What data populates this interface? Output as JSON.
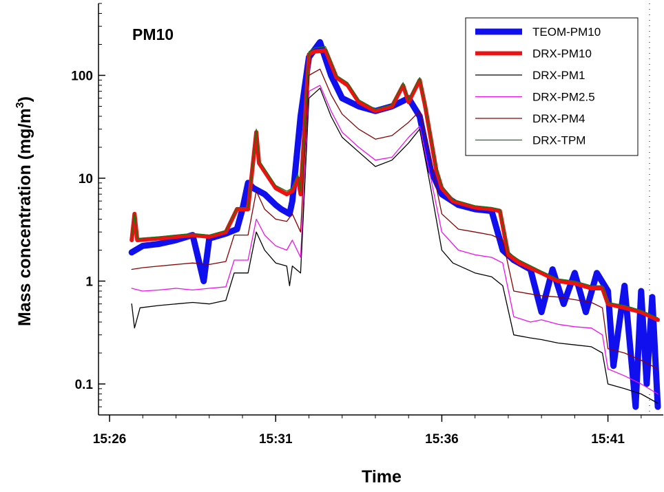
{
  "chart_data": {
    "type": "line",
    "title": "PM10",
    "xlabel": "Time",
    "ylabel": "Mass concentration (mg/m",
    "ylabel_sup": "3",
    "ylabel_close": ")",
    "yscale": "log",
    "ylim": [
      0.05,
      500
    ],
    "xlim": [
      "15:25:40",
      "15:42:40"
    ],
    "x_ticks": [
      "15:26",
      "15:31",
      "15:36",
      "15:41"
    ],
    "y_ticks": [
      {
        "value": 0.1,
        "label": "0.1"
      },
      {
        "value": 1,
        "label": "1"
      },
      {
        "value": 10,
        "label": "10"
      },
      {
        "value": 100,
        "label": "100"
      }
    ],
    "legend_position": "top-right",
    "series": [
      {
        "name": "TEOM-PM10",
        "color": "#1010ee",
        "points": [
          [
            "15:26:40",
            1.9
          ],
          [
            "15:27:00",
            2.2
          ],
          [
            "15:27:30",
            2.3
          ],
          [
            "15:28:00",
            2.5
          ],
          [
            "15:28:30",
            2.8
          ],
          [
            "15:28:50",
            1.0
          ],
          [
            "15:29:00",
            2.6
          ],
          [
            "15:29:30",
            2.9
          ],
          [
            "15:29:50",
            3.2
          ],
          [
            "15:30:00",
            5.0
          ],
          [
            "15:30:10",
            9
          ],
          [
            "15:30:20",
            8
          ],
          [
            "15:30:40",
            7
          ],
          [
            "15:31:00",
            5.5
          ],
          [
            "15:31:10",
            5.0
          ],
          [
            "15:31:25",
            4.5
          ],
          [
            "15:31:30",
            6
          ],
          [
            "15:31:45",
            40
          ],
          [
            "15:32:00",
            150
          ],
          [
            "15:32:20",
            210
          ],
          [
            "15:32:40",
            100
          ],
          [
            "15:33:00",
            60
          ],
          [
            "15:33:30",
            50
          ],
          [
            "15:34:00",
            45
          ],
          [
            "15:34:30",
            50
          ],
          [
            "15:35:00",
            60
          ],
          [
            "15:35:20",
            40
          ],
          [
            "15:35:40",
            12
          ],
          [
            "15:36:00",
            7
          ],
          [
            "15:36:30",
            5.5
          ],
          [
            "15:37:00",
            5.0
          ],
          [
            "15:37:30",
            4.8
          ],
          [
            "15:37:50",
            2.0
          ],
          [
            "15:38:10",
            1.6
          ],
          [
            "15:38:40",
            1.3
          ],
          [
            "15:39:00",
            0.5
          ],
          [
            "15:39:20",
            1.3
          ],
          [
            "15:39:40",
            0.6
          ],
          [
            "15:40:00",
            1.2
          ],
          [
            "15:40:20",
            0.5
          ],
          [
            "15:40:40",
            1.2
          ],
          [
            "15:41:00",
            0.8
          ],
          [
            "15:41:10",
            0.15
          ],
          [
            "15:41:30",
            0.9
          ],
          [
            "15:41:50",
            0.06
          ],
          [
            "15:42:00",
            0.8
          ],
          [
            "15:42:10",
            0.1
          ],
          [
            "15:42:20",
            0.7
          ],
          [
            "15:42:30",
            0.06
          ]
        ]
      },
      {
        "name": "DRX-PM10",
        "color": "#ee1111",
        "points": [
          [
            "15:26:40",
            2.5
          ],
          [
            "15:26:45",
            4.5
          ],
          [
            "15:26:50",
            2.5
          ],
          [
            "15:27:30",
            2.6
          ],
          [
            "15:28:00",
            2.7
          ],
          [
            "15:28:30",
            2.8
          ],
          [
            "15:29:00",
            2.7
          ],
          [
            "15:29:30",
            3.0
          ],
          [
            "15:29:50",
            5.0
          ],
          [
            "15:30:10",
            5.0
          ],
          [
            "15:30:25",
            28
          ],
          [
            "15:30:30",
            14
          ],
          [
            "15:31:00",
            8
          ],
          [
            "15:31:20",
            7
          ],
          [
            "15:31:30",
            7.5
          ],
          [
            "15:31:40",
            10
          ],
          [
            "15:31:45",
            7
          ],
          [
            "15:32:00",
            160
          ],
          [
            "15:32:10",
            170
          ],
          [
            "15:32:30",
            175
          ],
          [
            "15:32:50",
            95
          ],
          [
            "15:33:10",
            80
          ],
          [
            "15:33:30",
            55
          ],
          [
            "15:34:00",
            45
          ],
          [
            "15:34:30",
            50
          ],
          [
            "15:34:50",
            80
          ],
          [
            "15:35:00",
            55
          ],
          [
            "15:35:20",
            90
          ],
          [
            "15:35:30",
            50
          ],
          [
            "15:35:50",
            12
          ],
          [
            "15:36:00",
            8
          ],
          [
            "15:36:20",
            6
          ],
          [
            "15:37:00",
            5.2
          ],
          [
            "15:37:30",
            5.0
          ],
          [
            "15:37:45",
            4.8
          ],
          [
            "15:38:00",
            1.8
          ],
          [
            "15:38:20",
            1.5
          ],
          [
            "15:39:00",
            1.2
          ],
          [
            "15:39:30",
            1.0
          ],
          [
            "15:40:00",
            0.95
          ],
          [
            "15:40:30",
            0.85
          ],
          [
            "15:40:50",
            0.85
          ],
          [
            "15:41:00",
            0.6
          ],
          [
            "15:41:30",
            0.55
          ],
          [
            "15:42:00",
            0.5
          ],
          [
            "15:42:30",
            0.42
          ]
        ]
      },
      {
        "name": "DRX-PM1",
        "color": "#000000",
        "points": [
          [
            "15:26:40",
            0.6
          ],
          [
            "15:26:45",
            0.35
          ],
          [
            "15:26:55",
            0.55
          ],
          [
            "15:27:30",
            0.58
          ],
          [
            "15:28:00",
            0.6
          ],
          [
            "15:28:30",
            0.62
          ],
          [
            "15:29:00",
            0.6
          ],
          [
            "15:29:30",
            0.65
          ],
          [
            "15:29:45",
            1.2
          ],
          [
            "15:30:10",
            1.2
          ],
          [
            "15:30:25",
            3.0
          ],
          [
            "15:30:40",
            2.0
          ],
          [
            "15:31:00",
            1.5
          ],
          [
            "15:31:20",
            1.4
          ],
          [
            "15:31:25",
            0.9
          ],
          [
            "15:31:30",
            1.4
          ],
          [
            "15:31:45",
            1.2
          ],
          [
            "15:32:00",
            60
          ],
          [
            "15:32:20",
            75
          ],
          [
            "15:32:40",
            40
          ],
          [
            "15:33:00",
            25
          ],
          [
            "15:33:30",
            18
          ],
          [
            "15:34:00",
            13
          ],
          [
            "15:34:30",
            15
          ],
          [
            "15:35:00",
            22
          ],
          [
            "15:35:20",
            30
          ],
          [
            "15:35:40",
            8
          ],
          [
            "15:36:00",
            2
          ],
          [
            "15:36:20",
            1.5
          ],
          [
            "15:37:00",
            1.2
          ],
          [
            "15:37:30",
            1.1
          ],
          [
            "15:37:50",
            0.9
          ],
          [
            "15:38:10",
            0.3
          ],
          [
            "15:38:40",
            0.28
          ],
          [
            "15:39:00",
            0.27
          ],
          [
            "15:39:30",
            0.25
          ],
          [
            "15:40:00",
            0.24
          ],
          [
            "15:40:30",
            0.23
          ],
          [
            "15:40:50",
            0.2
          ],
          [
            "15:41:00",
            0.1
          ],
          [
            "15:41:30",
            0.09
          ],
          [
            "15:42:00",
            0.08
          ],
          [
            "15:42:30",
            0.065
          ]
        ]
      },
      {
        "name": "DRX-PM2.5",
        "color": "#ee11ee",
        "points": [
          [
            "15:26:40",
            0.85
          ],
          [
            "15:27:00",
            0.8
          ],
          [
            "15:27:30",
            0.82
          ],
          [
            "15:28:00",
            0.85
          ],
          [
            "15:28:30",
            0.82
          ],
          [
            "15:29:00",
            0.85
          ],
          [
            "15:29:30",
            0.88
          ],
          [
            "15:29:45",
            1.6
          ],
          [
            "15:30:10",
            1.6
          ],
          [
            "15:30:25",
            4.0
          ],
          [
            "15:30:40",
            2.8
          ],
          [
            "15:31:00",
            2.2
          ],
          [
            "15:31:20",
            2.0
          ],
          [
            "15:31:30",
            2.5
          ],
          [
            "15:31:45",
            1.7
          ],
          [
            "15:32:00",
            70
          ],
          [
            "15:32:20",
            80
          ],
          [
            "15:32:40",
            45
          ],
          [
            "15:33:00",
            28
          ],
          [
            "15:33:30",
            20
          ],
          [
            "15:34:00",
            15
          ],
          [
            "15:34:30",
            16
          ],
          [
            "15:35:00",
            25
          ],
          [
            "15:35:20",
            32
          ],
          [
            "15:35:40",
            10
          ],
          [
            "15:36:00",
            3
          ],
          [
            "15:36:30",
            2.0
          ],
          [
            "15:37:00",
            1.8
          ],
          [
            "15:37:30",
            1.7
          ],
          [
            "15:37:50",
            1.5
          ],
          [
            "15:38:10",
            0.45
          ],
          [
            "15:38:40",
            0.4
          ],
          [
            "15:39:00",
            0.42
          ],
          [
            "15:39:30",
            0.38
          ],
          [
            "15:40:00",
            0.36
          ],
          [
            "15:40:30",
            0.35
          ],
          [
            "15:40:50",
            0.3
          ],
          [
            "15:41:00",
            0.14
          ],
          [
            "15:41:30",
            0.12
          ],
          [
            "15:42:00",
            0.1
          ],
          [
            "15:42:30",
            0.08
          ]
        ]
      },
      {
        "name": "DRX-PM4",
        "color": "#880000",
        "points": [
          [
            "15:26:40",
            1.3
          ],
          [
            "15:27:00",
            1.35
          ],
          [
            "15:27:30",
            1.4
          ],
          [
            "15:28:00",
            1.45
          ],
          [
            "15:28:30",
            1.5
          ],
          [
            "15:29:00",
            1.45
          ],
          [
            "15:29:30",
            1.55
          ],
          [
            "15:29:45",
            2.8
          ],
          [
            "15:30:10",
            2.8
          ],
          [
            "15:30:25",
            7.5
          ],
          [
            "15:30:40",
            5
          ],
          [
            "15:31:00",
            4
          ],
          [
            "15:31:20",
            3.8
          ],
          [
            "15:31:30",
            4.5
          ],
          [
            "15:31:45",
            3.0
          ],
          [
            "15:32:00",
            100
          ],
          [
            "15:32:20",
            115
          ],
          [
            "15:32:40",
            65
          ],
          [
            "15:33:00",
            42
          ],
          [
            "15:33:30",
            30
          ],
          [
            "15:34:00",
            24
          ],
          [
            "15:34:30",
            26
          ],
          [
            "15:35:00",
            35
          ],
          [
            "15:35:20",
            45
          ],
          [
            "15:35:40",
            15
          ],
          [
            "15:36:00",
            4.5
          ],
          [
            "15:36:30",
            3.2
          ],
          [
            "15:37:00",
            3.0
          ],
          [
            "15:37:30",
            2.8
          ],
          [
            "15:37:50",
            2.5
          ],
          [
            "15:38:10",
            0.8
          ],
          [
            "15:38:40",
            0.75
          ],
          [
            "15:39:00",
            0.72
          ],
          [
            "15:39:30",
            0.7
          ],
          [
            "15:40:00",
            0.66
          ],
          [
            "15:40:30",
            0.62
          ],
          [
            "15:40:50",
            0.55
          ],
          [
            "15:41:00",
            0.22
          ],
          [
            "15:41:30",
            0.2
          ],
          [
            "15:42:00",
            0.17
          ],
          [
            "15:42:30",
            0.14
          ]
        ]
      },
      {
        "name": "DRX-TPM",
        "color": "#117711",
        "points": [
          [
            "15:26:40",
            2.6
          ],
          [
            "15:26:45",
            4.6
          ],
          [
            "15:26:50",
            2.6
          ],
          [
            "15:27:30",
            2.7
          ],
          [
            "15:28:00",
            2.8
          ],
          [
            "15:28:30",
            2.9
          ],
          [
            "15:29:00",
            2.8
          ],
          [
            "15:29:30",
            3.1
          ],
          [
            "15:29:50",
            5.2
          ],
          [
            "15:30:10",
            5.2
          ],
          [
            "15:30:25",
            30
          ],
          [
            "15:30:30",
            15
          ],
          [
            "15:31:00",
            8.5
          ],
          [
            "15:31:20",
            7.5
          ],
          [
            "15:31:30",
            8
          ],
          [
            "15:31:40",
            11
          ],
          [
            "15:31:45",
            7.5
          ],
          [
            "15:32:00",
            170
          ],
          [
            "15:32:10",
            185
          ],
          [
            "15:32:30",
            190
          ],
          [
            "15:32:50",
            100
          ],
          [
            "15:33:10",
            85
          ],
          [
            "15:33:30",
            58
          ],
          [
            "15:34:00",
            47
          ],
          [
            "15:34:30",
            52
          ],
          [
            "15:34:50",
            85
          ],
          [
            "15:35:00",
            58
          ],
          [
            "15:35:20",
            95
          ],
          [
            "15:35:30",
            52
          ],
          [
            "15:35:50",
            13
          ],
          [
            "15:36:00",
            8.5
          ],
          [
            "15:36:20",
            6.2
          ],
          [
            "15:37:00",
            5.4
          ],
          [
            "15:37:30",
            5.2
          ],
          [
            "15:37:45",
            5.0
          ],
          [
            "15:38:00",
            1.9
          ],
          [
            "15:38:20",
            1.6
          ],
          [
            "15:39:00",
            1.25
          ],
          [
            "15:39:30",
            1.05
          ],
          [
            "15:40:00",
            1.0
          ],
          [
            "15:40:30",
            0.9
          ],
          [
            "15:40:50",
            0.9
          ],
          [
            "15:41:00",
            0.62
          ],
          [
            "15:41:30",
            0.58
          ],
          [
            "15:42:00",
            0.52
          ],
          [
            "15:42:30",
            0.44
          ]
        ]
      }
    ]
  }
}
